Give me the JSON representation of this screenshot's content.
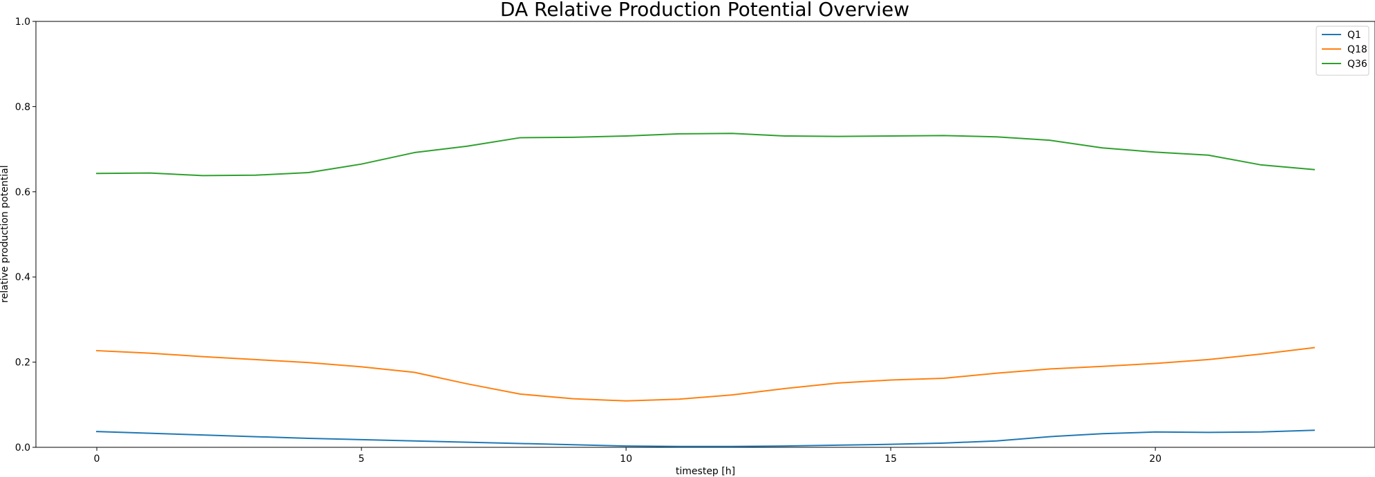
{
  "chart_data": {
    "type": "line",
    "title": "DA Relative Production Potential Overview",
    "xlabel": "timestep [h]",
    "ylabel": "relative production potential",
    "xlim": [
      -1.15,
      24.15
    ],
    "ylim": [
      0.0,
      1.0
    ],
    "xticks": [
      0,
      5,
      10,
      15,
      20
    ],
    "yticks": [
      0.0,
      0.2,
      0.4,
      0.6,
      0.8,
      1.0
    ],
    "grid": false,
    "legend_position": "top-right",
    "x": [
      0,
      1,
      2,
      3,
      4,
      5,
      6,
      7,
      8,
      9,
      10,
      11,
      12,
      13,
      14,
      15,
      16,
      17,
      18,
      19,
      20,
      21,
      22,
      23
    ],
    "series": [
      {
        "name": "Q1",
        "color": "#1f77b4",
        "values": [
          0.037,
          0.033,
          0.029,
          0.025,
          0.021,
          0.018,
          0.015,
          0.012,
          0.009,
          0.006,
          0.003,
          0.002,
          0.002,
          0.003,
          0.005,
          0.007,
          0.01,
          0.015,
          0.025,
          0.032,
          0.036,
          0.035,
          0.036,
          0.04
        ]
      },
      {
        "name": "Q18",
        "color": "#ff7f0e",
        "values": [
          0.227,
          0.221,
          0.213,
          0.206,
          0.199,
          0.189,
          0.176,
          0.149,
          0.125,
          0.114,
          0.109,
          0.113,
          0.123,
          0.138,
          0.151,
          0.158,
          0.162,
          0.174,
          0.184,
          0.19,
          0.197,
          0.206,
          0.219,
          0.234
        ]
      },
      {
        "name": "Q36",
        "color": "#2ca02c",
        "values": [
          0.643,
          0.644,
          0.638,
          0.639,
          0.645,
          0.665,
          0.692,
          0.707,
          0.727,
          0.728,
          0.731,
          0.736,
          0.737,
          0.731,
          0.73,
          0.731,
          0.732,
          0.729,
          0.721,
          0.703,
          0.693,
          0.686,
          0.663,
          0.652
        ]
      }
    ]
  }
}
